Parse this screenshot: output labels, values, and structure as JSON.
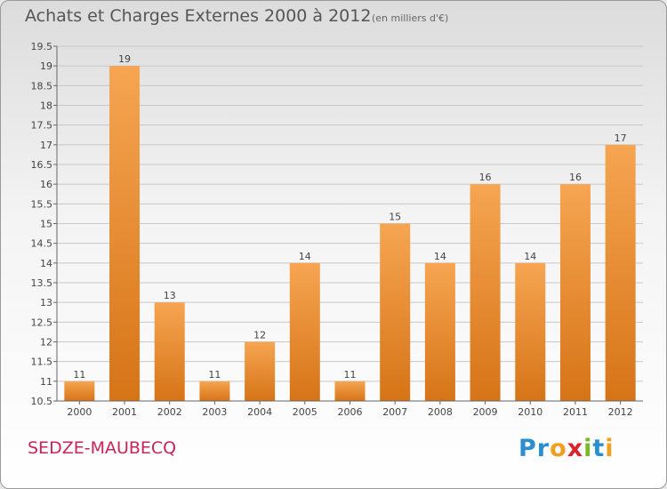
{
  "title": "Achats et Charges Externes 2000 à 2012",
  "subtitle": "(en milliers d'€)",
  "location": "SEDZE-MAUBECQ",
  "brand": {
    "letters": [
      "P",
      "r",
      "o",
      "x",
      "i",
      "t",
      "i"
    ],
    "colors": [
      "#2a8fd0",
      "#2a8fd0",
      "#f0a020",
      "#d8232a",
      "#7ab828",
      "#2a8fd0",
      "#f0a020"
    ]
  },
  "colors": {
    "bar_top": "#f6a552",
    "bar_bottom": "#d67417",
    "grid": "#c8c8c8",
    "axis": "#666666",
    "text": "#444444"
  },
  "chart_data": {
    "type": "bar",
    "title": "Achats et Charges Externes 2000 à 2012",
    "xlabel": "",
    "ylabel": "",
    "categories": [
      "2000",
      "2001",
      "2002",
      "2003",
      "2004",
      "2005",
      "2006",
      "2007",
      "2008",
      "2009",
      "2010",
      "2011",
      "2012"
    ],
    "values": [
      11,
      19,
      13,
      11,
      12,
      14,
      11,
      15,
      14,
      16,
      14,
      16,
      17
    ],
    "data_labels": [
      "11",
      "19",
      "13",
      "11",
      "12",
      "14",
      "11",
      "15",
      "14",
      "16",
      "14",
      "16",
      "17"
    ],
    "ylim": [
      10.5,
      19.5
    ],
    "yticks": [
      10.5,
      11,
      11.5,
      12,
      12.5,
      13,
      13.5,
      14,
      14.5,
      15,
      15.5,
      16,
      16.5,
      17,
      17.5,
      18,
      18.5,
      19,
      19.5
    ],
    "ytick_labels": [
      "10.5",
      "11",
      "11.5",
      "12",
      "12.5",
      "13",
      "13.5",
      "14",
      "14.5",
      "15",
      "15.5",
      "16",
      "16.5",
      "17",
      "17.5",
      "18",
      "18.5",
      "19",
      "19.5"
    ],
    "grid": true
  }
}
